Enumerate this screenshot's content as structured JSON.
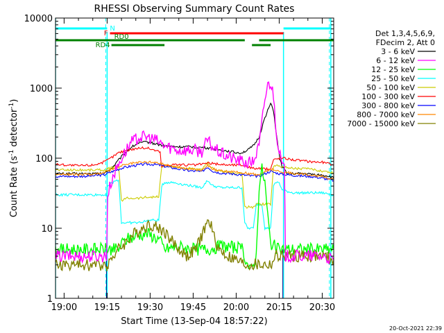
{
  "chart_data": {
    "type": "line",
    "title": "RHESSI Observing Summary Count Rates",
    "xlabel": "Start Time (13-Sep-04 18:57:22)",
    "ylabel_main": "Count Rate (s",
    "ylabel_sup1": "-1",
    "ylabel_mid": " detector",
    "ylabel_sup2": "-1",
    "ylabel_end": ")",
    "yscale": "log",
    "ylim": [
      1,
      10000
    ],
    "xlim_minutes": [
      -3,
      94
    ],
    "x_tick_labels": [
      "19:00",
      "19:15",
      "19:30",
      "19:45",
      "20:00",
      "20:15",
      "20:30"
    ],
    "x_tick_minutes": [
      0,
      15,
      30,
      45,
      60,
      75,
      90
    ],
    "y_tick_labels": [
      "1",
      "10",
      "100",
      "1000",
      "10000"
    ],
    "y_tick_values": [
      1,
      10,
      100,
      1000,
      10000
    ],
    "legend": {
      "header": [
        "Det 1,3,4,5,6,9,",
        "FDecim 2, Att 0"
      ],
      "position": "right"
    },
    "series": [
      {
        "name": "3 - 6 keV",
        "color": "#000000",
        "x": [
          -3,
          5,
          14,
          17,
          20,
          23,
          26,
          29,
          32,
          35,
          40,
          45,
          50,
          55,
          58,
          60,
          62,
          64,
          66,
          68,
          70,
          72,
          73,
          74,
          75,
          76,
          78,
          80,
          84,
          88,
          92,
          94
        ],
        "y": [
          60,
          60,
          60,
          75,
          105,
          140,
          165,
          170,
          160,
          150,
          145,
          145,
          140,
          130,
          125,
          120,
          120,
          130,
          150,
          200,
          380,
          600,
          480,
          220,
          110,
          75,
          60,
          60,
          60,
          58,
          56,
          52
        ]
      },
      {
        "name": "6 - 12 keV",
        "color": "#ff00ff",
        "x": [
          -3,
          10,
          14.8,
          15.2,
          17,
          20,
          23,
          26,
          29,
          32,
          35,
          40,
          45,
          48,
          50,
          52,
          55,
          60,
          64,
          66,
          68,
          70,
          71,
          72,
          73,
          74,
          75,
          76,
          76.8,
          77.2,
          80,
          85,
          90,
          94
        ],
        "y": [
          4,
          4,
          4,
          30,
          55,
          100,
          160,
          200,
          200,
          180,
          150,
          130,
          130,
          125,
          180,
          140,
          115,
          95,
          85,
          90,
          150,
          700,
          1100,
          1200,
          800,
          250,
          120,
          80,
          70,
          4,
          4,
          4,
          4,
          3.5
        ]
      },
      {
        "name": "12 - 25 keV",
        "color": "#00ff00",
        "x": [
          -3,
          14.8,
          15,
          16,
          19,
          20,
          22,
          26,
          29,
          30,
          33,
          34,
          35,
          40,
          45,
          50,
          54,
          58,
          62,
          63,
          64,
          65,
          66,
          67,
          68,
          69,
          70,
          71,
          72,
          73,
          74,
          75,
          76,
          77,
          80,
          85,
          90,
          94
        ],
        "y": [
          5,
          5,
          5,
          5,
          5,
          6,
          7,
          8,
          8.5,
          8,
          7,
          6,
          5,
          5.5,
          5,
          5,
          5.5,
          5.5,
          5,
          4,
          3,
          2.5,
          3,
          4,
          40,
          70,
          45,
          15,
          6,
          6,
          5,
          5,
          5,
          5,
          5,
          5,
          5,
          5
        ]
      },
      {
        "name": "25 - 50 keV",
        "color": "#00ffff",
        "x": [
          -3,
          10,
          14.8,
          15,
          17,
          19,
          20,
          22,
          26,
          30,
          33,
          34,
          35,
          38,
          42,
          45,
          48,
          50,
          52,
          55,
          58,
          60,
          62,
          63,
          64,
          66,
          67,
          69,
          70,
          72,
          73,
          74,
          75,
          76,
          80,
          85,
          90,
          94
        ],
        "y": [
          30,
          30,
          30,
          40,
          45,
          50,
          12,
          12,
          12,
          13,
          13,
          40,
          45,
          45,
          42,
          40,
          38,
          48,
          40,
          38,
          38,
          38,
          38,
          12,
          10,
          10,
          22,
          22,
          10,
          10,
          40,
          45,
          45,
          35,
          32,
          32,
          32,
          30
        ]
      },
      {
        "name": "50 - 100 keV",
        "color": "#cccc00",
        "x": [
          -3,
          10,
          14.8,
          15,
          18,
          19,
          20,
          22,
          26,
          30,
          33,
          34,
          35,
          38,
          42,
          45,
          48,
          50,
          52,
          55,
          58,
          60,
          62,
          63,
          64,
          66,
          67,
          69,
          70,
          72,
          73,
          74,
          75,
          76,
          80,
          85,
          90,
          94
        ],
        "y": [
          68,
          68,
          68,
          70,
          75,
          75,
          25,
          27,
          27,
          28,
          28,
          75,
          78,
          76,
          72,
          70,
          68,
          85,
          70,
          65,
          62,
          60,
          60,
          20,
          20,
          20,
          22,
          22,
          22,
          22,
          75,
          80,
          80,
          75,
          72,
          70,
          66,
          62
        ]
      },
      {
        "name": "100 - 300 keV",
        "color": "#ff0000",
        "x": [
          -3,
          5,
          10,
          14,
          17,
          19,
          22,
          26,
          29,
          33,
          33.5,
          34,
          35,
          38,
          42,
          46,
          50,
          54,
          58,
          62,
          63,
          64,
          66,
          69,
          72,
          73,
          75,
          77,
          80,
          85,
          90,
          94
        ],
        "y": [
          82,
          78,
          80,
          88,
          105,
          120,
          130,
          140,
          140,
          125,
          120,
          75,
          78,
          82,
          80,
          80,
          85,
          82,
          80,
          80,
          78,
          75,
          72,
          70,
          70,
          95,
          100,
          100,
          95,
          90,
          88,
          80
        ]
      },
      {
        "name": "300 - 800 keV",
        "color": "#0000ff",
        "x": [
          -3,
          5,
          10,
          14,
          17,
          20,
          24,
          28,
          30,
          33,
          36,
          40,
          44,
          48,
          50,
          52,
          54,
          58,
          62,
          65,
          68,
          70,
          72,
          75,
          78,
          82,
          86,
          90,
          94
        ],
        "y": [
          55,
          55,
          56,
          58,
          65,
          72,
          78,
          82,
          82,
          80,
          75,
          70,
          66,
          64,
          75,
          65,
          62,
          60,
          58,
          56,
          55,
          60,
          65,
          60,
          58,
          56,
          55,
          52,
          48
        ]
      },
      {
        "name": "800 - 7000 keV",
        "color": "#ff8800",
        "x": [
          -3,
          5,
          10,
          14,
          17,
          20,
          24,
          28,
          30,
          33,
          36,
          40,
          44,
          48,
          50,
          52,
          54,
          58,
          62,
          65,
          68,
          70,
          72,
          75,
          78,
          82,
          86,
          90,
          94
        ],
        "y": [
          60,
          58,
          59,
          62,
          70,
          78,
          85,
          88,
          88,
          85,
          80,
          74,
          70,
          68,
          80,
          70,
          66,
          64,
          62,
          60,
          58,
          64,
          70,
          64,
          62,
          60,
          58,
          55,
          50
        ]
      },
      {
        "name": "7000 - 15000 keV",
        "color": "#808000",
        "x": [
          -3,
          10,
          14.8,
          15,
          17,
          19,
          21,
          24,
          27,
          29,
          31,
          33,
          35,
          37,
          40,
          43,
          46,
          48,
          50,
          51,
          52,
          54,
          57,
          60,
          63,
          65,
          67,
          69,
          70,
          72,
          74,
          77,
          80,
          85,
          90,
          94
        ],
        "y": [
          3,
          3,
          3,
          3,
          4,
          5,
          6,
          8,
          10,
          11,
          11,
          10,
          9,
          7,
          5,
          4,
          5,
          8,
          12,
          12,
          8,
          5,
          4,
          3.5,
          3,
          3,
          3,
          3,
          3,
          3,
          4,
          4,
          4,
          4,
          4,
          3.5
        ]
      }
    ],
    "overlays": {
      "night_vlines_minutes": [
        -3,
        93
      ],
      "saa_vlines_minutes": [
        15,
        76.5
      ],
      "saa_dashed_vlines_minutes": [
        14.5,
        92.5
      ],
      "bars": [
        {
          "label": "N",
          "color": "#00ffff",
          "level": "top",
          "ranges": [
            [
              -3,
              15
            ],
            [
              76.5,
              93
            ]
          ]
        },
        {
          "label": "F",
          "color": "#ff0000",
          "level": "upper",
          "ranges": [
            [
              16,
              76.5
            ]
          ]
        },
        {
          "label": "RD0",
          "color": "#008000",
          "level": "middle",
          "ranges": [
            [
              -3,
              63
            ],
            [
              68,
              94
            ]
          ]
        },
        {
          "label": "RD4",
          "color": "#008000",
          "level": "lower",
          "ranges": [
            [
              16.5,
              35
            ],
            [
              65.5,
              72
            ]
          ]
        }
      ]
    },
    "footer_timestamp": "20-Oct-2021 22:39"
  }
}
